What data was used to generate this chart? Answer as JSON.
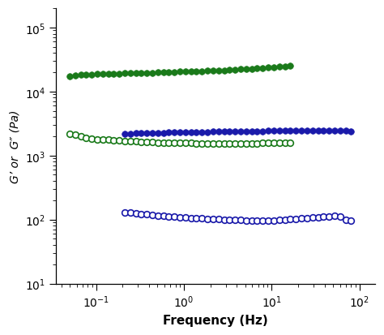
{
  "green_filled_x": [
    0.05,
    0.058,
    0.067,
    0.077,
    0.089,
    0.103,
    0.119,
    0.138,
    0.159,
    0.184,
    0.212,
    0.245,
    0.283,
    0.327,
    0.378,
    0.437,
    0.505,
    0.583,
    0.674,
    0.779,
    0.9,
    1.04,
    1.202,
    1.389,
    1.606,
    1.856,
    2.145,
    2.479,
    2.865,
    3.312,
    3.828,
    4.425,
    5.115,
    5.913,
    6.834,
    7.899,
    9.132,
    10.56,
    12.2,
    14.1,
    16.3
  ],
  "green_filled_y": [
    17500,
    18000,
    18200,
    18400,
    18600,
    18700,
    18800,
    18900,
    19000,
    19100,
    19200,
    19300,
    19400,
    19500,
    19600,
    19700,
    19800,
    19900,
    20000,
    20200,
    20400,
    20500,
    20600,
    20700,
    20800,
    21000,
    21100,
    21300,
    21500,
    21700,
    22000,
    22200,
    22500,
    22800,
    23100,
    23400,
    23700,
    24000,
    24300,
    24600,
    25000
  ],
  "green_open_x": [
    0.05,
    0.058,
    0.067,
    0.077,
    0.089,
    0.103,
    0.119,
    0.138,
    0.159,
    0.184,
    0.212,
    0.245,
    0.283,
    0.327,
    0.378,
    0.437,
    0.505,
    0.583,
    0.674,
    0.779,
    0.9,
    1.04,
    1.202,
    1.389,
    1.606,
    1.856,
    2.145,
    2.479,
    2.865,
    3.312,
    3.828,
    4.425,
    5.115,
    5.913,
    6.834,
    7.899,
    9.132,
    10.56,
    12.2,
    14.1,
    16.3
  ],
  "green_open_y": [
    2200,
    2100,
    1980,
    1900,
    1840,
    1800,
    1780,
    1760,
    1740,
    1720,
    1700,
    1680,
    1660,
    1640,
    1620,
    1610,
    1600,
    1590,
    1580,
    1575,
    1570,
    1565,
    1560,
    1555,
    1550,
    1550,
    1545,
    1545,
    1540,
    1540,
    1540,
    1545,
    1550,
    1555,
    1555,
    1560,
    1565,
    1570,
    1575,
    1580,
    1590
  ],
  "blue_filled_x": [
    0.212,
    0.245,
    0.283,
    0.327,
    0.378,
    0.437,
    0.505,
    0.583,
    0.674,
    0.779,
    0.9,
    1.04,
    1.202,
    1.389,
    1.606,
    1.856,
    2.145,
    2.479,
    2.865,
    3.312,
    3.828,
    4.425,
    5.115,
    5.913,
    6.834,
    7.899,
    9.132,
    10.56,
    12.2,
    14.1,
    16.3,
    18.84,
    21.77,
    25.17,
    29.1,
    33.64,
    38.88,
    44.95,
    51.97,
    60.07,
    69.44,
    80.27
  ],
  "blue_filled_y": [
    2200,
    2200,
    2220,
    2230,
    2240,
    2250,
    2260,
    2270,
    2280,
    2290,
    2300,
    2300,
    2310,
    2320,
    2330,
    2340,
    2350,
    2360,
    2370,
    2380,
    2380,
    2390,
    2400,
    2400,
    2410,
    2410,
    2420,
    2430,
    2430,
    2440,
    2450,
    2440,
    2440,
    2440,
    2440,
    2440,
    2440,
    2440,
    2430,
    2430,
    2420,
    2400
  ],
  "blue_open_x": [
    0.212,
    0.245,
    0.283,
    0.327,
    0.378,
    0.437,
    0.505,
    0.583,
    0.674,
    0.779,
    0.9,
    1.04,
    1.202,
    1.389,
    1.606,
    1.856,
    2.145,
    2.479,
    2.865,
    3.312,
    3.828,
    4.425,
    5.115,
    5.913,
    6.834,
    7.899,
    9.132,
    10.56,
    12.2,
    14.1,
    16.3,
    18.84,
    21.77,
    25.17,
    29.1,
    33.64,
    38.88,
    44.95,
    51.97,
    60.07,
    69.44,
    80.27
  ],
  "blue_open_y": [
    130,
    128,
    125,
    122,
    120,
    118,
    115,
    113,
    111,
    110,
    108,
    107,
    106,
    105,
    104,
    103,
    102,
    101,
    100,
    99,
    98,
    98,
    97,
    97,
    96,
    96,
    97,
    97,
    98,
    99,
    101,
    102,
    104,
    105,
    107,
    108,
    110,
    112,
    113,
    110,
    100,
    96
  ],
  "green_color": "#1a7a1a",
  "blue_color": "#1a1aaa",
  "xlabel": "Frequency (Hz)",
  "ylabel": "G’ or  G″ (Pa)",
  "xlim": [
    0.035,
    150
  ],
  "ylim": [
    10,
    200000
  ],
  "marker_size": 5.5,
  "marker_edge_width": 1.2
}
